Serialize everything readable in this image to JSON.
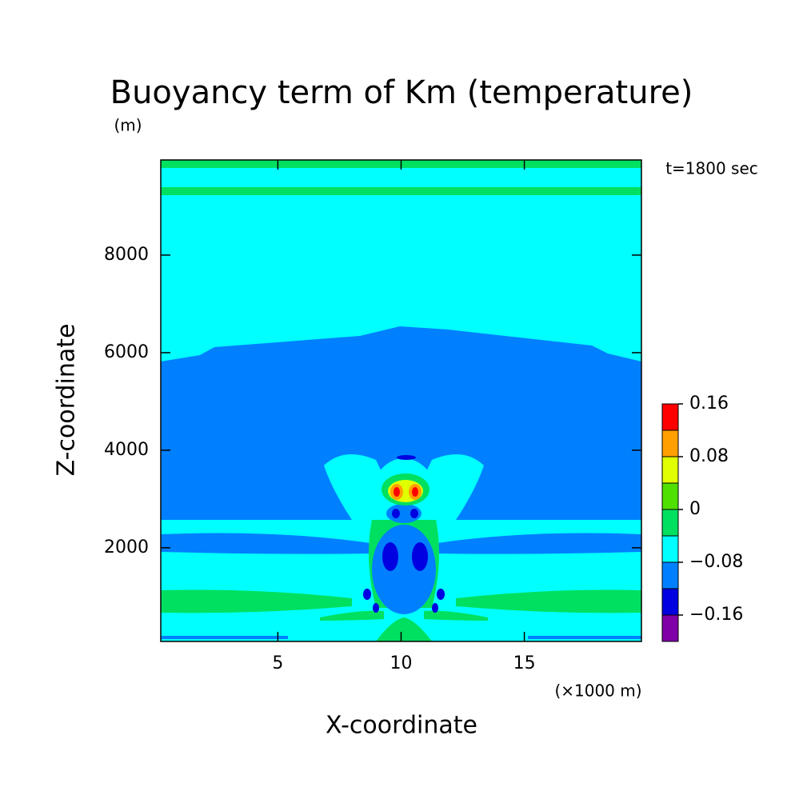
{
  "chart_data": {
    "type": "contour",
    "title": "Buoyancy term of Km (temperature)",
    "y_unit": "(m)",
    "x_unit": "(×1000 m)",
    "time_label": "t=1800 sec",
    "xlabel": "X-coordinate",
    "ylabel": "Z-coordinate",
    "xlim": [
      0.25,
      19.75
    ],
    "ylim": [
      80,
      9950
    ],
    "xticks": [
      5,
      10,
      15
    ],
    "yticks": [
      2000,
      4000,
      6000,
      8000
    ],
    "colorbar": {
      "levels": [
        -0.2,
        -0.16,
        -0.12,
        -0.08,
        -0.04,
        0,
        0.04,
        0.08,
        0.12,
        0.16
      ],
      "colors": [
        "#8000a8",
        "#0000e0",
        "#0080ff",
        "#00ffff",
        "#00e060",
        "#50e000",
        "#e0ff00",
        "#ffa000",
        "#ff0000"
      ],
      "ticks": [
        {
          "value": -0.16,
          "label": "−0.16"
        },
        {
          "value": -0.08,
          "label": "−0.08"
        },
        0,
        0.08,
        0.16
      ]
    }
  }
}
